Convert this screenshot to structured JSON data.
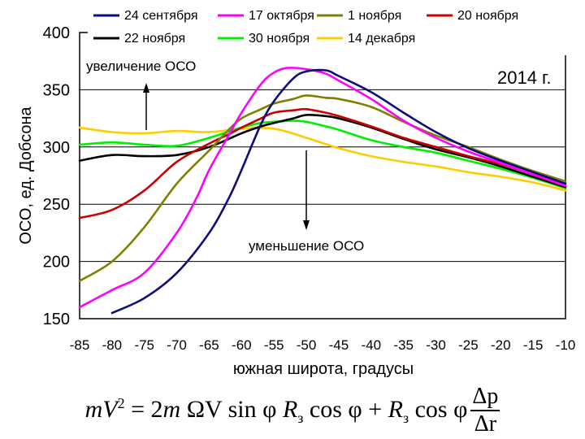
{
  "chart_data": {
    "type": "line",
    "title": "",
    "annotation_year": "2014 г.",
    "annotation_increase": "увеличение ОСО",
    "annotation_decrease": "уменьшение ОСО",
    "xlabel": "южная широта, градусы",
    "ylabel": "ОСО, ед. Добсона",
    "xlim": [
      -85,
      -10
    ],
    "ylim": [
      150,
      400
    ],
    "xticks": [
      -85,
      -80,
      -75,
      -70,
      -65,
      -60,
      -55,
      -50,
      -45,
      -40,
      -35,
      -30,
      -25,
      -20,
      -15,
      -10
    ],
    "yticks": [
      150,
      200,
      250,
      300,
      350,
      400
    ],
    "grid": "horizontal",
    "legend_position": "top",
    "series": [
      {
        "name": "24 сентября",
        "color": "#0d0d7a",
        "x": [
          -80,
          -75,
          -70,
          -65,
          -62,
          -60,
          -57,
          -55,
          -52,
          -50,
          -47,
          -45,
          -40,
          -35,
          -30,
          -25,
          -20,
          -15,
          -10
        ],
        "y": [
          155,
          168,
          190,
          225,
          255,
          280,
          320,
          340,
          360,
          366,
          367,
          362,
          348,
          330,
          313,
          299,
          288,
          278,
          268
        ]
      },
      {
        "name": "17 октября",
        "color": "#ff00ff",
        "x": [
          -85,
          -80,
          -75,
          -70,
          -67,
          -65,
          -62,
          -60,
          -57,
          -55,
          -53,
          -50,
          -47,
          -45,
          -40,
          -35,
          -30,
          -25,
          -20,
          -15,
          -10
        ],
        "y": [
          160,
          175,
          190,
          225,
          255,
          280,
          310,
          330,
          355,
          365,
          369,
          368,
          364,
          358,
          342,
          323,
          308,
          296,
          286,
          276,
          266
        ]
      },
      {
        "name": "1 ноября",
        "color": "#808000",
        "x": [
          -85,
          -80,
          -75,
          -70,
          -65,
          -62,
          -60,
          -57,
          -55,
          -52,
          -50,
          -47,
          -45,
          -40,
          -35,
          -30,
          -25,
          -20,
          -15,
          -10
        ],
        "y": [
          183,
          200,
          230,
          268,
          297,
          315,
          325,
          333,
          338,
          342,
          345,
          343,
          342,
          335,
          322,
          310,
          300,
          289,
          279,
          270
        ]
      },
      {
        "name": "20 ноября",
        "color": "#cc0000",
        "x": [
          -85,
          -80,
          -75,
          -70,
          -65,
          -62,
          -60,
          -57,
          -55,
          -52,
          -50,
          -47,
          -45,
          -40,
          -35,
          -30,
          -25,
          -20,
          -15,
          -10
        ],
        "y": [
          238,
          245,
          262,
          287,
          303,
          311,
          317,
          325,
          330,
          332,
          333,
          330,
          327,
          318,
          308,
          300,
          292,
          285,
          276,
          266
        ]
      },
      {
        "name": "22 ноября",
        "color": "#000000",
        "x": [
          -85,
          -80,
          -75,
          -70,
          -65,
          -60,
          -57,
          -55,
          -52,
          -50,
          -47,
          -45,
          -40,
          -35,
          -30,
          -25,
          -20,
          -15,
          -10
        ],
        "y": [
          288,
          293,
          292,
          293,
          300,
          312,
          318,
          321,
          325,
          328,
          327,
          325,
          317,
          307,
          298,
          291,
          283,
          274,
          265
        ]
      },
      {
        "name": "30 ноября",
        "color": "#00ee00",
        "x": [
          -85,
          -80,
          -75,
          -70,
          -65,
          -60,
          -57,
          -55,
          -52,
          -50,
          -47,
          -45,
          -40,
          -35,
          -30,
          -25,
          -20,
          -15,
          -10
        ],
        "y": [
          302,
          304,
          302,
          301,
          308,
          317,
          321,
          322,
          323,
          322,
          318,
          315,
          306,
          300,
          295,
          288,
          281,
          273,
          264
        ]
      },
      {
        "name": "14 декабря",
        "color": "#ffcc00",
        "x": [
          -85,
          -80,
          -75,
          -70,
          -65,
          -60,
          -55,
          -50,
          -45,
          -40,
          -35,
          -30,
          -25,
          -20,
          -15,
          -10
        ],
        "y": [
          317,
          313,
          312,
          314,
          313,
          316,
          316,
          308,
          299,
          292,
          287,
          283,
          278,
          274,
          269,
          262
        ]
      }
    ]
  },
  "formula": {
    "lhs_m": "m",
    "lhs_V": "V",
    "lhs_exp": "2",
    "eq": " = 2",
    "term1": " ΩV sin φ",
    "R": "R",
    "sub": "з",
    "cos": " cos φ + ",
    "cos2": " cos φ",
    "num": "Δp",
    "den": "Δr"
  }
}
